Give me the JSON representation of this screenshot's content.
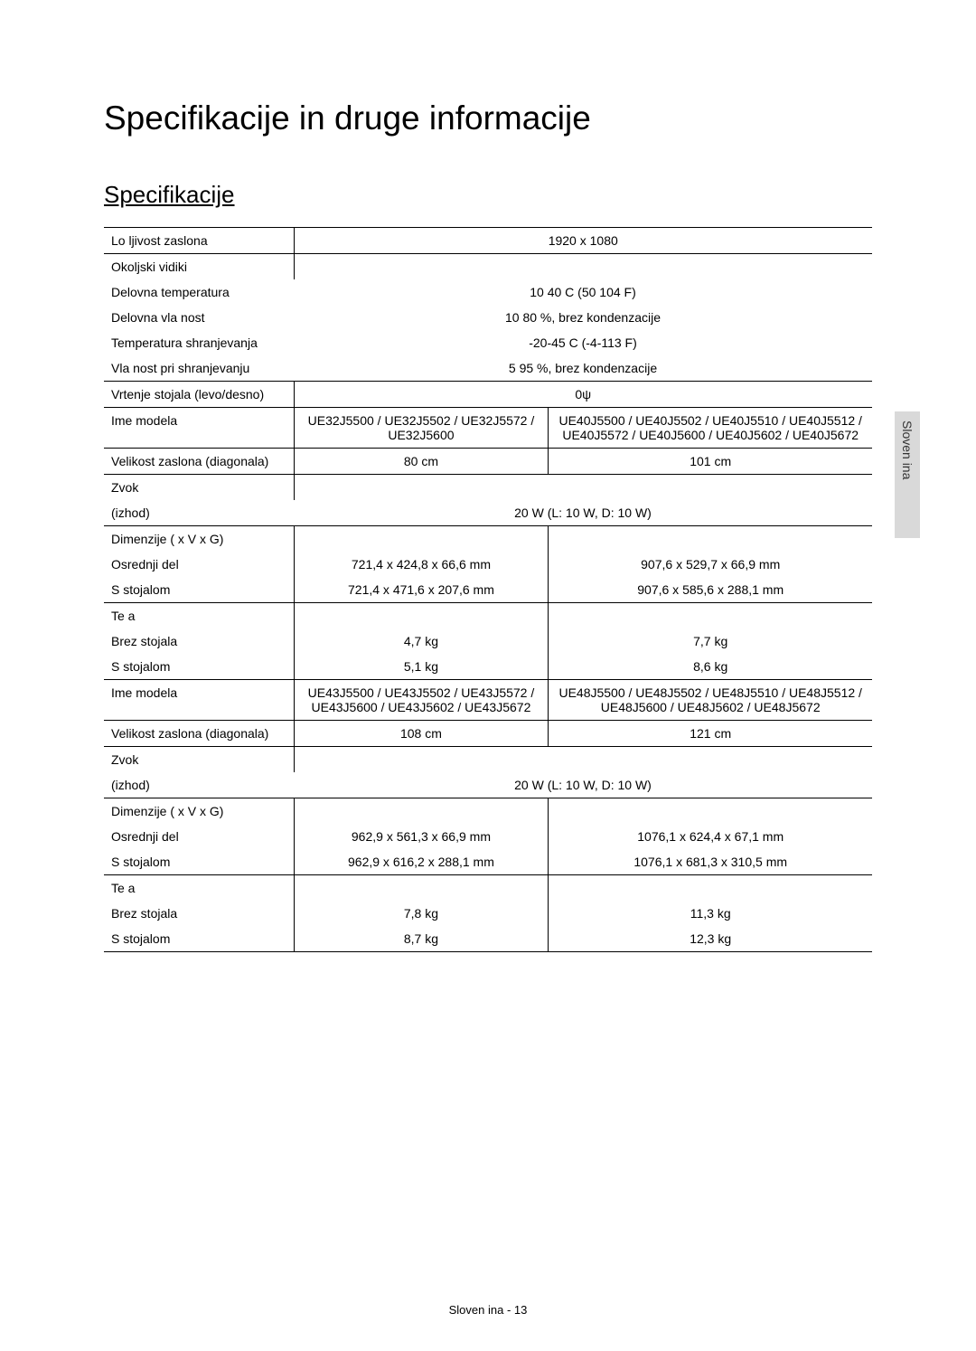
{
  "title": "Specifikacije in druge informacije",
  "section": "Specifikacije",
  "side_tab": "Sloven ina",
  "footer": "Sloven ina - 13",
  "rows": {
    "resolution_label": "Lo ljivost zaslona",
    "resolution_value": "1920 x 1080",
    "env_label": "Okoljski vidiki",
    "op_temp_label": "Delovna temperatura",
    "op_temp_value": "10 40  C (50 104  F)",
    "op_hum_label": "Delovna vla nost",
    "op_hum_value": "10 80 %, brez kondenzacije",
    "storage_temp_label": "Temperatura shranjevanja",
    "storage_temp_value": "-20-45  C (-4-113 F)",
    "storage_hum_label": "Vla nost pri shranjevanju",
    "storage_hum_value": "5 95 %, brez kondenzacije",
    "swivel_label": "Vrtenje stojala (levo/desno)",
    "swivel_value": "0ψ",
    "model_label": "Ime modela",
    "model1_col1": "UE32J5500 / UE32J5502 / UE32J5572 / UE32J5600",
    "model1_col2": "UE40J5500 / UE40J5502 / UE40J5510 / UE40J5512 / UE40J5572 / UE40J5600 / UE40J5602 / UE40J5672",
    "diag_label": "Velikost zaslona (diagonala)",
    "diag1_col1": "80 cm",
    "diag1_col2": "101 cm",
    "sound_label": "Zvok",
    "output_label": "(izhod)",
    "output1_value": "20 W (L: 10 W, D: 10 W)",
    "dims_label": "Dimenzije (  x V x G)",
    "body_label": "Osrednji del",
    "body1_col1": "721,4 x 424,8 x 66,6 mm",
    "body1_col2": "907,6 x 529,7 x 66,9 mm",
    "stand_label": "S stojalom",
    "stand1_col1": "721,4 x 471,6 x 207,6 mm",
    "stand1_col2": "907,6 x 585,6 x 288,1 mm",
    "weight_label": "Te a",
    "nostand_label": "Brez stojala",
    "nostand1_col1": "4,7 kg",
    "nostand1_col2": "7,7 kg",
    "wstand1_col1": "5,1 kg",
    "wstand1_col2": "8,6 kg",
    "model2_col1": "UE43J5500 / UE43J5502 / UE43J5572 / UE43J5600 / UE43J5602 / UE43J5672",
    "model2_col2": "UE48J5500 / UE48J5502 / UE48J5510 / UE48J5512 / UE48J5600 / UE48J5602 / UE48J5672",
    "diag2_col1": "108 cm",
    "diag2_col2": "121 cm",
    "output2_value": "20 W (L: 10 W, D: 10 W)",
    "body2_col1": "962,9 x 561,3 x 66,9 mm",
    "body2_col2": "1076,1 x 624,4 x 67,1 mm",
    "stand2_col1": "962,9 x 616,2 x 288,1 mm",
    "stand2_col2": "1076,1 x 681,3 x 310,5 mm",
    "nostand2_col1": "7,8 kg",
    "nostand2_col2": "11,3 kg",
    "wstand2_col1": "8,7 kg",
    "wstand2_col2": "12,3 kg"
  }
}
